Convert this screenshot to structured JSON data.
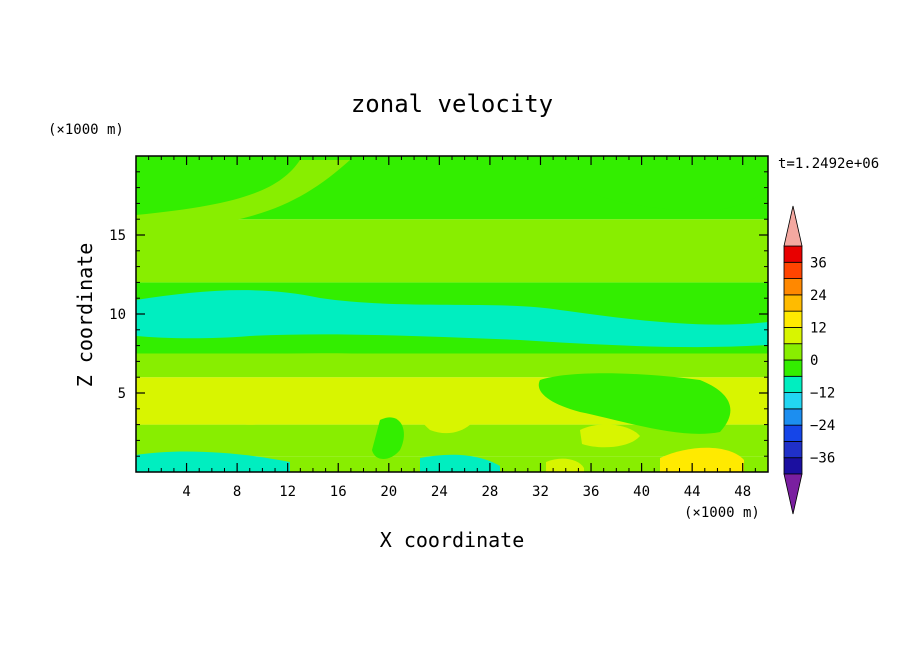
{
  "chart_data": {
    "type": "heatmap",
    "title": "zonal velocity",
    "xlabel": "X coordinate",
    "ylabel": "Z coordinate",
    "x_unit": "(×1000 m)",
    "y_unit": "(×1000 m)",
    "time_label": "t=1.2492e+06",
    "xlim": [
      0,
      50
    ],
    "ylim": [
      0,
      20
    ],
    "x_ticks": [
      "4",
      "8",
      "12",
      "16",
      "20",
      "24",
      "28",
      "32",
      "36",
      "40",
      "44",
      "48"
    ],
    "y_ticks": [
      "5",
      "10",
      "15"
    ],
    "colorbar": {
      "min": -42,
      "max": 42,
      "step": 6,
      "tick_labels": [
        "36",
        "24",
        "12",
        "0",
        "−12",
        "−24",
        "−36"
      ],
      "tick_values": [
        36,
        24,
        12,
        0,
        -12,
        -24,
        -36
      ],
      "colors": [
        "#7a1fa0",
        "#1b0fa0",
        "#2030c8",
        "#1545e8",
        "#1c8ef0",
        "#22d6f2",
        "#00eec0",
        "#33ee00",
        "#88ee00",
        "#d8f500",
        "#ffea00",
        "#ffbb00",
        "#ff8800",
        "#ff4400",
        "#e80000",
        "#f4a8a0"
      ]
    },
    "bands": [
      {
        "z": [
          0,
          1
        ],
        "u": 0
      },
      {
        "z": [
          1,
          3
        ],
        "u": 3
      },
      {
        "z": [
          3,
          6
        ],
        "u": 7
      },
      {
        "z": [
          6,
          7.5
        ],
        "u": 3
      },
      {
        "z": [
          7.5,
          12
        ],
        "u": -4
      },
      {
        "z": [
          12,
          16
        ],
        "u": 3
      },
      {
        "z": [
          16,
          20
        ],
        "u": -2
      }
    ]
  }
}
